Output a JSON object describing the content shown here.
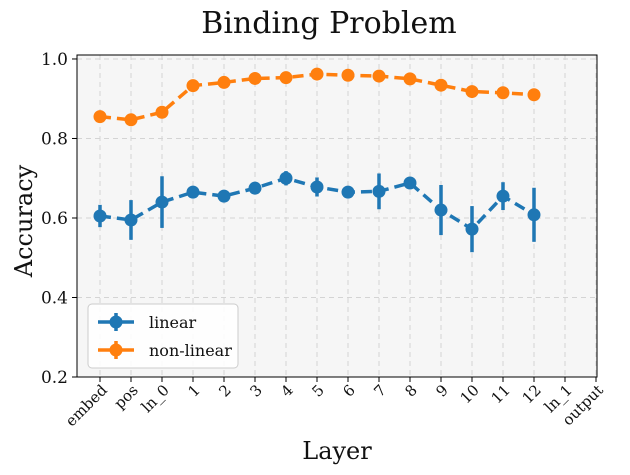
{
  "chart_data": {
    "type": "line",
    "title": "Binding Problem",
    "xlabel": "Layer",
    "ylabel": "Accuracy",
    "categories": [
      "embed",
      "pos",
      "ln_0",
      "1",
      "2",
      "3",
      "4",
      "5",
      "6",
      "7",
      "8",
      "9",
      "10",
      "11",
      "12",
      "ln_1",
      "output"
    ],
    "ylim": [
      0.2,
      1.01
    ],
    "yticks": [
      "0.2",
      "0.4",
      "0.6",
      "0.8",
      "1.0"
    ],
    "grid": true,
    "legend_position": "lower-left",
    "series": [
      {
        "name": "linear",
        "color": "#1f77b4",
        "values": [
          0.605,
          0.595,
          0.64,
          0.665,
          0.655,
          0.675,
          0.7,
          0.678,
          0.665,
          0.667,
          0.688,
          0.62,
          0.572,
          0.655,
          0.608,
          null,
          null
        ],
        "errors": [
          0.028,
          0.05,
          0.065,
          0.015,
          0.012,
          0.012,
          0.018,
          0.024,
          0.01,
          0.045,
          0.015,
          0.063,
          0.058,
          0.035,
          0.068,
          null,
          null
        ]
      },
      {
        "name": "non-linear",
        "color": "#ff7f0e",
        "values": [
          0.855,
          0.847,
          0.866,
          0.933,
          0.941,
          0.951,
          0.953,
          0.962,
          0.959,
          0.957,
          0.95,
          0.934,
          0.918,
          0.915,
          0.91,
          null,
          null
        ],
        "errors": [
          0.006,
          0.006,
          0.006,
          0.006,
          0.006,
          0.006,
          0.006,
          0.006,
          0.006,
          0.006,
          0.006,
          0.006,
          0.006,
          0.006,
          0.006,
          null,
          null
        ]
      }
    ]
  }
}
